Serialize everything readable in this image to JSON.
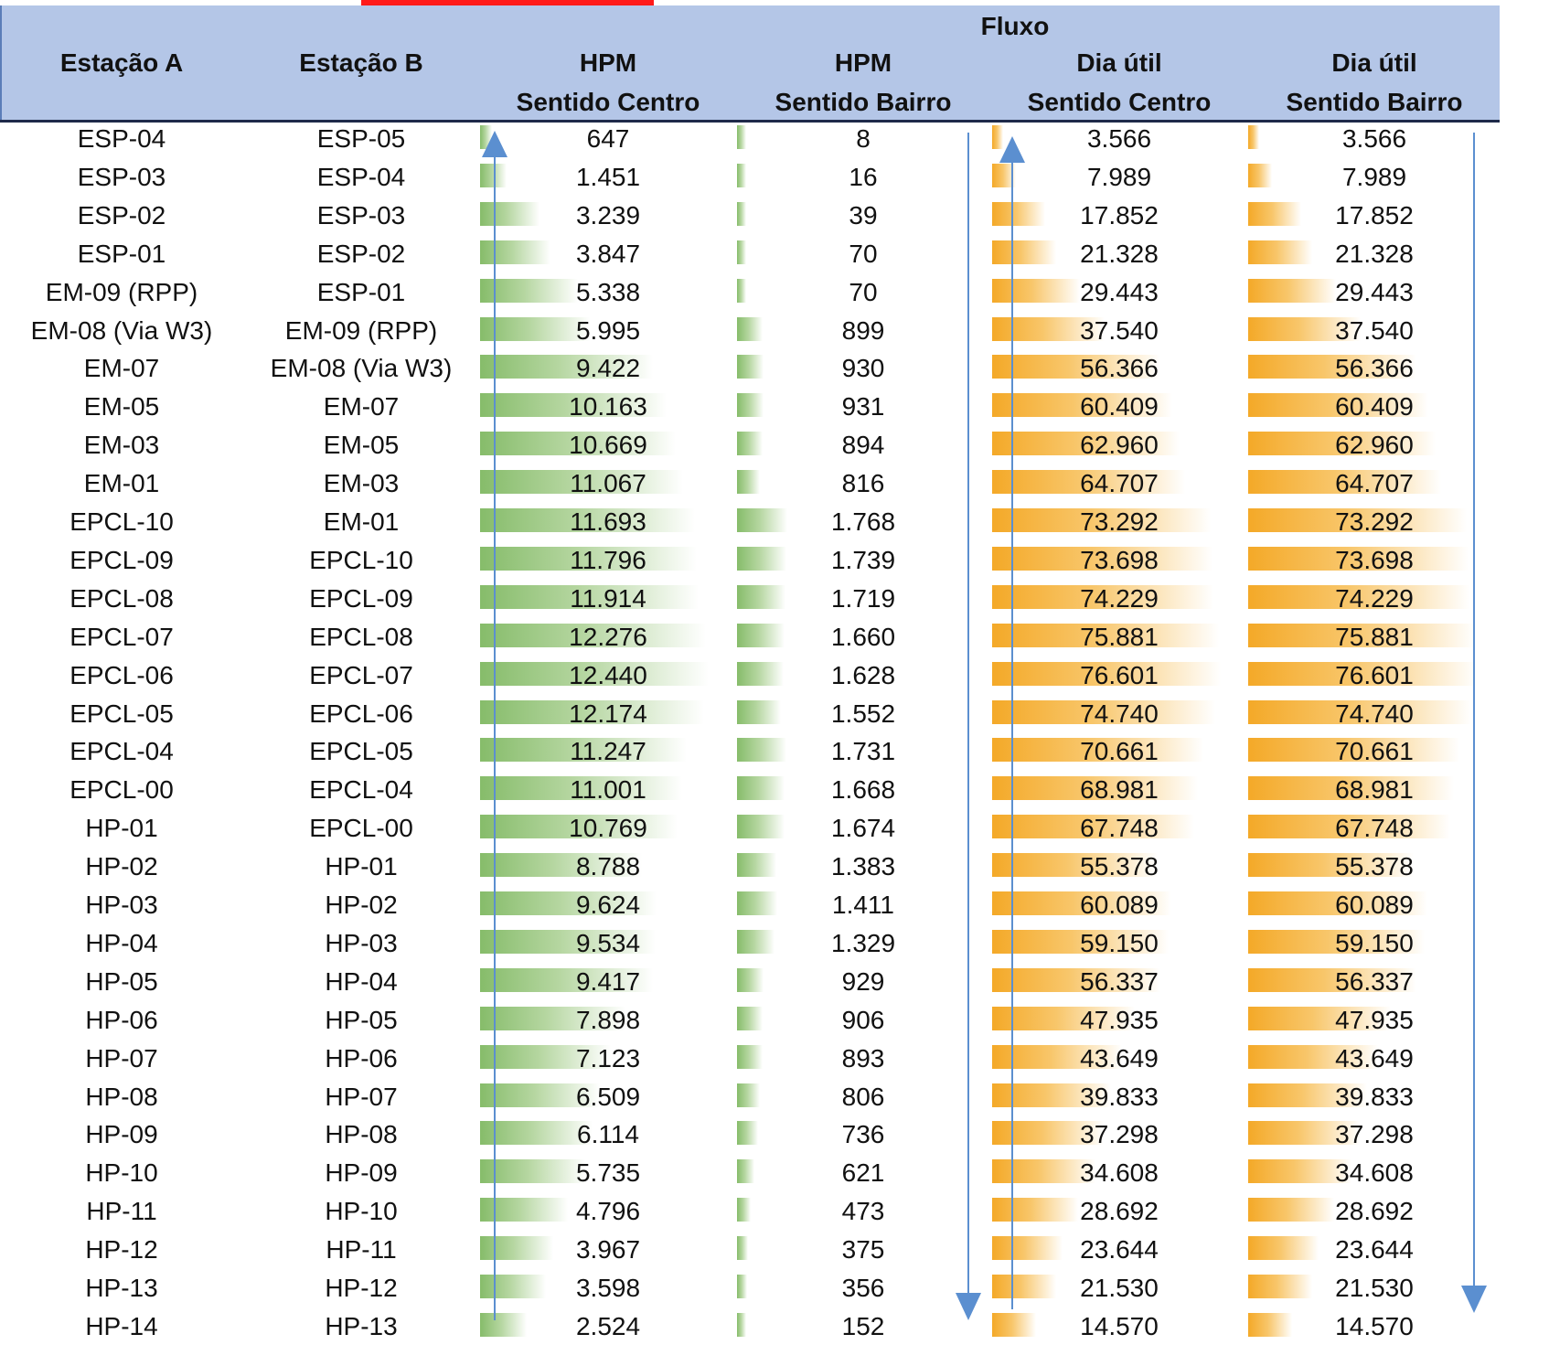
{
  "header": {
    "group_label": "Fluxo",
    "columns": [
      {
        "line1": "Estação A",
        "line2": ""
      },
      {
        "line1": "Estação B",
        "line2": ""
      },
      {
        "line1": "HPM",
        "line2": "Sentido Centro"
      },
      {
        "line1": "HPM",
        "line2": "Sentido Bairro"
      },
      {
        "line1": "Dia útil",
        "line2": "Sentido Centro"
      },
      {
        "line1": "Dia útil",
        "line2": "Sentido Bairro"
      }
    ]
  },
  "colors": {
    "header_bg": "#b4c6e7",
    "green_bar": "#86bc6a",
    "orange_bar": "#f4a928",
    "arrow": "#5b8fd0"
  },
  "arrows": [
    {
      "column": "HPM Sentido Centro",
      "direction": "up"
    },
    {
      "column": "HPM Sentido Bairro",
      "direction": "down"
    },
    {
      "column": "Dia útil Sentido Centro",
      "direction": "up"
    },
    {
      "column": "Dia útil Sentido Bairro",
      "direction": "down"
    }
  ],
  "rows": [
    {
      "a": "ESP-04",
      "b": "ESP-05",
      "hpm_centro": "647",
      "hpm_bairro": "8",
      "du_centro": "3.566",
      "du_bairro": "3.566"
    },
    {
      "a": "ESP-03",
      "b": "ESP-04",
      "hpm_centro": "1.451",
      "hpm_bairro": "16",
      "du_centro": "7.989",
      "du_bairro": "7.989"
    },
    {
      "a": "ESP-02",
      "b": "ESP-03",
      "hpm_centro": "3.239",
      "hpm_bairro": "39",
      "du_centro": "17.852",
      "du_bairro": "17.852"
    },
    {
      "a": "ESP-01",
      "b": "ESP-02",
      "hpm_centro": "3.847",
      "hpm_bairro": "70",
      "du_centro": "21.328",
      "du_bairro": "21.328"
    },
    {
      "a": "EM-09 (RPP)",
      "b": "ESP-01",
      "hpm_centro": "5.338",
      "hpm_bairro": "70",
      "du_centro": "29.443",
      "du_bairro": "29.443"
    },
    {
      "a": "EM-08 (Via W3)",
      "b": "EM-09 (RPP)",
      "hpm_centro": "5.995",
      "hpm_bairro": "899",
      "du_centro": "37.540",
      "du_bairro": "37.540"
    },
    {
      "a": "EM-07",
      "b": "EM-08 (Via W3)",
      "hpm_centro": "9.422",
      "hpm_bairro": "930",
      "du_centro": "56.366",
      "du_bairro": "56.366"
    },
    {
      "a": "EM-05",
      "b": "EM-07",
      "hpm_centro": "10.163",
      "hpm_bairro": "931",
      "du_centro": "60.409",
      "du_bairro": "60.409"
    },
    {
      "a": "EM-03",
      "b": "EM-05",
      "hpm_centro": "10.669",
      "hpm_bairro": "894",
      "du_centro": "62.960",
      "du_bairro": "62.960"
    },
    {
      "a": "EM-01",
      "b": "EM-03",
      "hpm_centro": "11.067",
      "hpm_bairro": "816",
      "du_centro": "64.707",
      "du_bairro": "64.707"
    },
    {
      "a": "EPCL-10",
      "b": "EM-01",
      "hpm_centro": "11.693",
      "hpm_bairro": "1.768",
      "du_centro": "73.292",
      "du_bairro": "73.292"
    },
    {
      "a": "EPCL-09",
      "b": "EPCL-10",
      "hpm_centro": "11.796",
      "hpm_bairro": "1.739",
      "du_centro": "73.698",
      "du_bairro": "73.698"
    },
    {
      "a": "EPCL-08",
      "b": "EPCL-09",
      "hpm_centro": "11.914",
      "hpm_bairro": "1.719",
      "du_centro": "74.229",
      "du_bairro": "74.229"
    },
    {
      "a": "EPCL-07",
      "b": "EPCL-08",
      "hpm_centro": "12.276",
      "hpm_bairro": "1.660",
      "du_centro": "75.881",
      "du_bairro": "75.881"
    },
    {
      "a": "EPCL-06",
      "b": "EPCL-07",
      "hpm_centro": "12.440",
      "hpm_bairro": "1.628",
      "du_centro": "76.601",
      "du_bairro": "76.601"
    },
    {
      "a": "EPCL-05",
      "b": "EPCL-06",
      "hpm_centro": "12.174",
      "hpm_bairro": "1.552",
      "du_centro": "74.740",
      "du_bairro": "74.740"
    },
    {
      "a": "EPCL-04",
      "b": "EPCL-05",
      "hpm_centro": "11.247",
      "hpm_bairro": "1.731",
      "du_centro": "70.661",
      "du_bairro": "70.661"
    },
    {
      "a": "EPCL-00",
      "b": "EPCL-04",
      "hpm_centro": "11.001",
      "hpm_bairro": "1.668",
      "du_centro": "68.981",
      "du_bairro": "68.981"
    },
    {
      "a": "HP-01",
      "b": "EPCL-00",
      "hpm_centro": "10.769",
      "hpm_bairro": "1.674",
      "du_centro": "67.748",
      "du_bairro": "67.748"
    },
    {
      "a": "HP-02",
      "b": "HP-01",
      "hpm_centro": "8.788",
      "hpm_bairro": "1.383",
      "du_centro": "55.378",
      "du_bairro": "55.378"
    },
    {
      "a": "HP-03",
      "b": "HP-02",
      "hpm_centro": "9.624",
      "hpm_bairro": "1.411",
      "du_centro": "60.089",
      "du_bairro": "60.089"
    },
    {
      "a": "HP-04",
      "b": "HP-03",
      "hpm_centro": "9.534",
      "hpm_bairro": "1.329",
      "du_centro": "59.150",
      "du_bairro": "59.150"
    },
    {
      "a": "HP-05",
      "b": "HP-04",
      "hpm_centro": "9.417",
      "hpm_bairro": "929",
      "du_centro": "56.337",
      "du_bairro": "56.337"
    },
    {
      "a": "HP-06",
      "b": "HP-05",
      "hpm_centro": "7.898",
      "hpm_bairro": "906",
      "du_centro": "47.935",
      "du_bairro": "47.935"
    },
    {
      "a": "HP-07",
      "b": "HP-06",
      "hpm_centro": "7.123",
      "hpm_bairro": "893",
      "du_centro": "43.649",
      "du_bairro": "43.649"
    },
    {
      "a": "HP-08",
      "b": "HP-07",
      "hpm_centro": "6.509",
      "hpm_bairro": "806",
      "du_centro": "39.833",
      "du_bairro": "39.833"
    },
    {
      "a": "HP-09",
      "b": "HP-08",
      "hpm_centro": "6.114",
      "hpm_bairro": "736",
      "du_centro": "37.298",
      "du_bairro": "37.298"
    },
    {
      "a": "HP-10",
      "b": "HP-09",
      "hpm_centro": "5.735",
      "hpm_bairro": "621",
      "du_centro": "34.608",
      "du_bairro": "34.608"
    },
    {
      "a": "HP-11",
      "b": "HP-10",
      "hpm_centro": "4.796",
      "hpm_bairro": "473",
      "du_centro": "28.692",
      "du_bairro": "28.692"
    },
    {
      "a": "HP-12",
      "b": "HP-11",
      "hpm_centro": "3.967",
      "hpm_bairro": "375",
      "du_centro": "23.644",
      "du_bairro": "23.644"
    },
    {
      "a": "HP-13",
      "b": "HP-12",
      "hpm_centro": "3.598",
      "hpm_bairro": "356",
      "du_centro": "21.530",
      "du_bairro": "21.530"
    },
    {
      "a": "HP-14",
      "b": "HP-13",
      "hpm_centro": "2.524",
      "hpm_bairro": "152",
      "du_centro": "14.570",
      "du_bairro": "14.570"
    }
  ]
}
